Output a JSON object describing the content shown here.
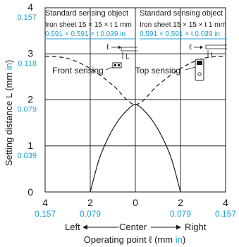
{
  "chart_data": {
    "type": "line",
    "title": "",
    "xlabel": "Operating point ℓ (mm ",
    "xlabel_unit": "in",
    "xlabel_close": ")",
    "ylabel": "Setting distance L (mm ",
    "ylabel_unit": "in",
    "ylabel_close": ")",
    "xlim": [
      -4,
      4
    ],
    "ylim": [
      0,
      4
    ],
    "grid": true,
    "x_ticks": [
      {
        "v": -4,
        "mm": "4",
        "in": "0.157"
      },
      {
        "v": -2,
        "mm": "2",
        "in": "0.079"
      },
      {
        "v": 0,
        "mm": "0",
        "in": ""
      },
      {
        "v": 2,
        "mm": "2",
        "in": "0.079"
      },
      {
        "v": 4,
        "mm": "4",
        "in": "0.157"
      }
    ],
    "y_ticks": [
      {
        "v": 0,
        "mm": "0",
        "in": ""
      },
      {
        "v": 1,
        "mm": "1",
        "in": "0.039"
      },
      {
        "v": 2,
        "mm": "2",
        "in": "0.079"
      },
      {
        "v": 3,
        "mm": "3",
        "in": "0.118"
      },
      {
        "v": 4,
        "mm": "4",
        "in": "0.157"
      }
    ],
    "direction_labels": {
      "left": "Left",
      "center": "Center",
      "right": "Right"
    },
    "series": [
      {
        "name": "Front sensing",
        "style": "solid",
        "points": [
          [
            -2.0,
            0.0
          ],
          [
            -1.6,
            0.72
          ],
          [
            -1.2,
            1.18
          ],
          [
            -0.8,
            1.52
          ],
          [
            -0.4,
            1.76
          ],
          [
            0.0,
            1.9
          ],
          [
            0.4,
            1.76
          ],
          [
            0.8,
            1.52
          ],
          [
            1.2,
            1.18
          ],
          [
            1.6,
            0.72
          ],
          [
            2.0,
            0.0
          ]
        ]
      },
      {
        "name": "Top sensing",
        "style": "dashed",
        "points": [
          [
            -4.0,
            2.95
          ],
          [
            -3.0,
            2.9
          ],
          [
            -2.0,
            2.68
          ],
          [
            -1.0,
            2.32
          ],
          [
            0.0,
            1.9
          ],
          [
            1.0,
            2.32
          ],
          [
            2.0,
            2.68
          ],
          [
            3.0,
            2.9
          ],
          [
            4.0,
            2.95
          ]
        ]
      }
    ],
    "annotations": {
      "left_box": {
        "title": "Standard sensing object",
        "line2": "Iron sheet 15 × 15 × t 1 mm",
        "line3": "0.591 × 0.591 × t 0.039 in",
        "sym_l": "ℓ",
        "sym_L": "L"
      },
      "right_box": {
        "title": "Standard sensing object",
        "line2": "Iron sheet 15 × 15 × t 1 mm",
        "line3": "0.591 × 0.591 × t 0.039 in",
        "sym_l": "ℓ",
        "sym_L": "L"
      },
      "front_label": "Front sensing",
      "top_label": "Top sensing"
    },
    "colors": {
      "ink": "#1a1a1a",
      "inch": "#1aa0d8",
      "grid": "#1a1a1a"
    }
  }
}
